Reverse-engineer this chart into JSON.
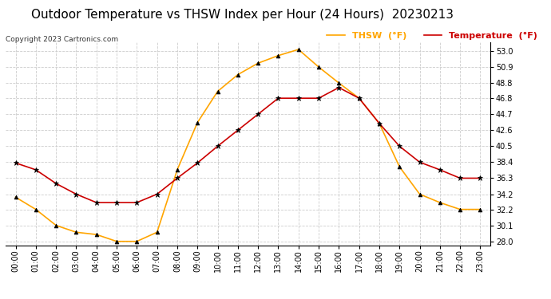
{
  "title": "Outdoor Temperature vs THSW Index per Hour (24 Hours)  20230213",
  "copyright": "Copyright 2023 Cartronics.com",
  "legend_thsw": "THSW  (°F)",
  "legend_temp": "Temperature  (°F)",
  "hours": [
    0,
    1,
    2,
    3,
    4,
    5,
    6,
    7,
    8,
    9,
    10,
    11,
    12,
    13,
    14,
    15,
    16,
    17,
    18,
    19,
    20,
    21,
    22,
    23
  ],
  "temperature": [
    38.3,
    37.4,
    35.6,
    34.2,
    33.1,
    33.1,
    33.1,
    34.2,
    36.3,
    38.3,
    40.5,
    42.6,
    44.7,
    46.8,
    46.8,
    46.8,
    48.2,
    46.8,
    43.5,
    40.5,
    38.4,
    37.4,
    36.3,
    36.3
  ],
  "thsw": [
    33.8,
    32.2,
    30.1,
    29.2,
    28.9,
    28.0,
    28.0,
    29.2,
    37.4,
    43.6,
    47.7,
    49.9,
    51.4,
    52.4,
    53.2,
    50.9,
    48.8,
    46.8,
    43.5,
    37.8,
    34.2,
    33.1,
    32.2,
    32.2
  ],
  "thsw_color": "#FFA500",
  "temp_color": "#CC0000",
  "marker_color": "#000000",
  "ylim": [
    27.5,
    54.2
  ],
  "yticks": [
    28.0,
    30.1,
    32.2,
    34.2,
    36.3,
    38.4,
    40.5,
    42.6,
    44.7,
    46.8,
    48.8,
    50.9,
    53.0
  ],
  "background_color": "#ffffff",
  "grid_color": "#cccccc",
  "title_fontsize": 11,
  "axis_fontsize": 7,
  "legend_fontsize": 8
}
